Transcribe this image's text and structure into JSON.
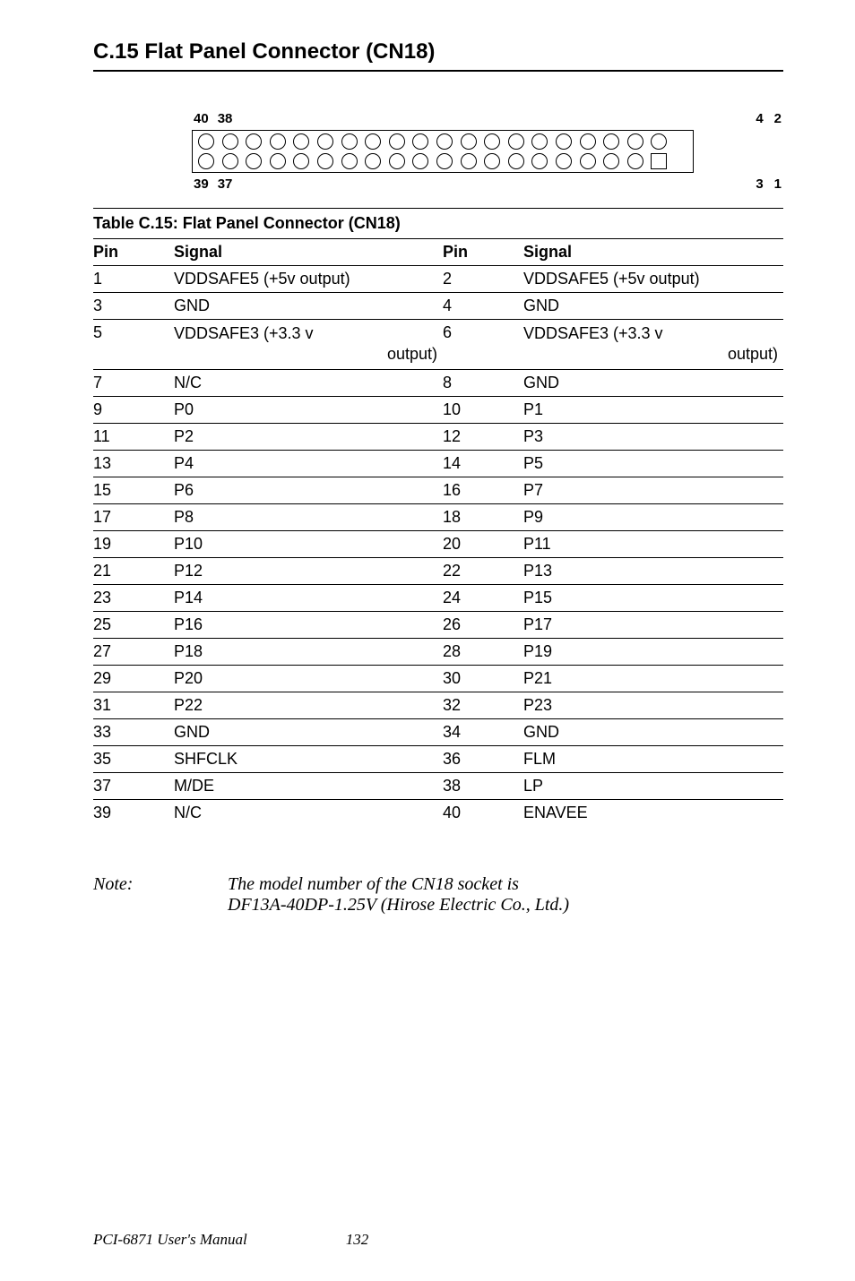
{
  "section_title": "C.15 Flat Panel Connector (CN18)",
  "connector": {
    "top_left_a": "40",
    "top_left_b": "38",
    "top_right_a": "4",
    "top_right_b": "2",
    "bot_left_a": "39",
    "bot_left_b": "37",
    "bot_right_a": "3",
    "bot_right_b": "1"
  },
  "table_title": "Table C.15: Flat Panel Connector (CN18)",
  "headers": {
    "pin": "Pin",
    "signal": "Signal"
  },
  "rows": [
    {
      "p1": "1",
      "s1": "VDDSAFE5 (+5v output)",
      "p2": "2",
      "s2": "VDDSAFE5 (+5v output)"
    },
    {
      "p1": "3",
      "s1": "GND",
      "p2": "4",
      "s2": "GND"
    },
    {
      "p1": "5",
      "s1a": "VDDSAFE3 (+3.3 v",
      "s1b": "output)",
      "p2": "6",
      "s2a": "VDDSAFE3 (+3.3 v",
      "s2b": "output)",
      "multi": true
    },
    {
      "p1": "7",
      "s1": "N/C",
      "p2": "8",
      "s2": "GND"
    },
    {
      "p1": "9",
      "s1": "P0",
      "p2": "10",
      "s2": "P1"
    },
    {
      "p1": "11",
      "s1": "P2",
      "p2": "12",
      "s2": "P3"
    },
    {
      "p1": "13",
      "s1": "P4",
      "p2": "14",
      "s2": "P5"
    },
    {
      "p1": "15",
      "s1": "P6",
      "p2": "16",
      "s2": "P7"
    },
    {
      "p1": "17",
      "s1": "P8",
      "p2": "18",
      "s2": "P9"
    },
    {
      "p1": "19",
      "s1": "P10",
      "p2": "20",
      "s2": "P11"
    },
    {
      "p1": "21",
      "s1": "P12",
      "p2": "22",
      "s2": "P13"
    },
    {
      "p1": "23",
      "s1": "P14",
      "p2": "24",
      "s2": "P15"
    },
    {
      "p1": "25",
      "s1": "P16",
      "p2": "26",
      "s2": "P17"
    },
    {
      "p1": "27",
      "s1": "P18",
      "p2": "28",
      "s2": "P19"
    },
    {
      "p1": "29",
      "s1": "P20",
      "p2": "30",
      "s2": "P21"
    },
    {
      "p1": "31",
      "s1": "P22",
      "p2": "32",
      "s2": "P23"
    },
    {
      "p1": "33",
      "s1": "GND",
      "p2": "34",
      "s2": "GND"
    },
    {
      "p1": "35",
      "s1": "SHFCLK",
      "p2": "36",
      "s2": "FLM"
    },
    {
      "p1": "37",
      "s1": "M/DE",
      "p2": "38",
      "s2": "LP"
    },
    {
      "p1": "39",
      "s1": "N/C",
      "p2": "40",
      "s2": "ENAVEE"
    }
  ],
  "note": {
    "label": "Note:",
    "line1": "The model number of the CN18 socket is",
    "line2": "DF13A-40DP-1.25V (Hirose Electric Co., Ltd.)"
  },
  "footer": {
    "manual": "PCI-6871 User's Manual",
    "page": "132"
  }
}
